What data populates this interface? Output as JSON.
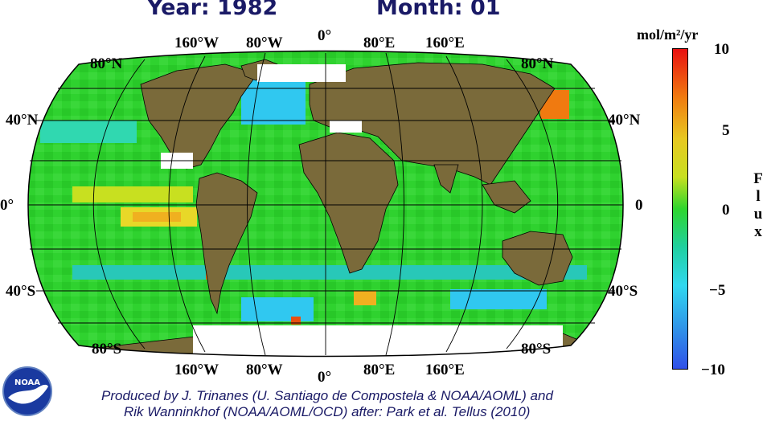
{
  "header": {
    "year_label": "Year: 1982",
    "month_label": "Month: 01"
  },
  "map": {
    "projection": "Robinson",
    "longitude_labels_top": [
      "160°W",
      "80°W",
      "0°",
      "80°E",
      "160°E"
    ],
    "longitude_labels_bottom": [
      "160°W",
      "80°W",
      "0°",
      "80°E",
      "160°E"
    ],
    "latitude_labels_left": [
      "80°N",
      "40°N",
      "0°",
      "40°S",
      "80°S"
    ],
    "latitude_labels_right": [
      "80°N",
      "40°N",
      "0",
      "40°S",
      "80°S"
    ],
    "colors": {
      "ocean": "#2fd22f",
      "land": "#7a6a3a",
      "ice": "#ffffff",
      "grid": "#000000"
    }
  },
  "colorbar": {
    "unit_label": "mol/m²/yr",
    "tick_labels": [
      "10",
      "5",
      "0",
      "−5",
      "−10"
    ],
    "axis_title": "Flux",
    "range": [
      -10,
      10
    ],
    "colors": [
      "#e81010",
      "#f07a10",
      "#e8c820",
      "#c8e020",
      "#2ed62e",
      "#20d0a0",
      "#30d8f0",
      "#3090e8",
      "#3050e8"
    ]
  },
  "logo": {
    "text": "NOAA"
  },
  "credits": {
    "line1": "Produced by J. Trinanes (U. Santiago de Compostela & NOAA/AOML) and",
    "line2": "Rik Wanninkhof (NOAA/AOML/OCD) after: Park et al. Tellus (2010)"
  }
}
